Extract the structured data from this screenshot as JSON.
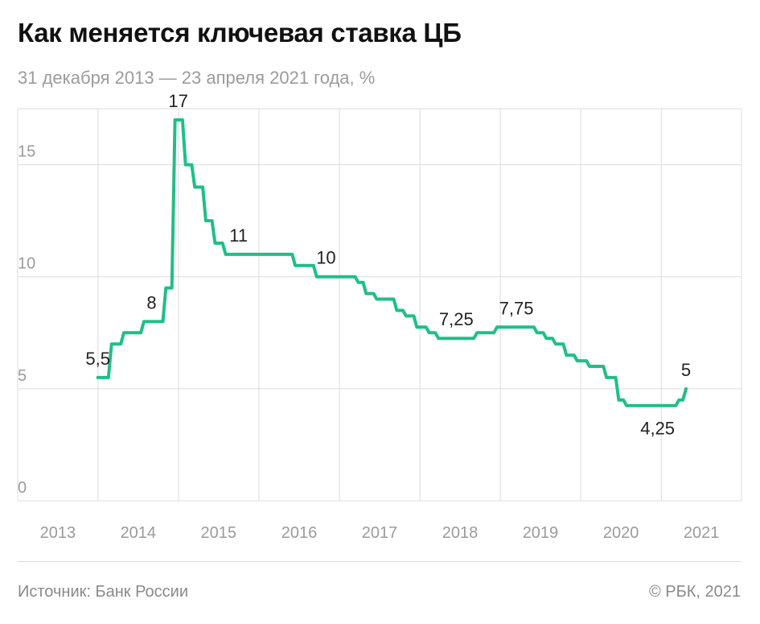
{
  "title": "Как меняется ключевая ставка ЦБ",
  "subtitle": "31 декабря 2013 — 23 апреля 2021 года, %",
  "source": "Источник: Банк России",
  "copyright": "© РБК, 2021",
  "colors": {
    "line": "#1fbf86",
    "grid": "#dcdcdc",
    "tick": "#9b9b9b",
    "label": "#222222"
  },
  "chart_data": {
    "type": "line",
    "title": "Как меняется ключевая ставка ЦБ",
    "ylim": [
      0,
      17.5
    ],
    "xlim": [
      "2013-01-01",
      "2021-12-31"
    ],
    "yticks": [
      0,
      5,
      10,
      15
    ],
    "xticks": [
      "2013",
      "2014",
      "2015",
      "2016",
      "2017",
      "2018",
      "2019",
      "2020",
      "2021"
    ],
    "grid": true,
    "series": [
      {
        "points": [
          [
            "2013-12-31",
            5.5
          ],
          [
            "2014-03-03",
            7.0
          ],
          [
            "2014-04-28",
            7.5
          ],
          [
            "2014-07-28",
            8.0
          ],
          [
            "2014-11-05",
            9.5
          ],
          [
            "2014-12-16",
            17.0
          ],
          [
            "2015-02-02",
            15.0
          ],
          [
            "2015-03-16",
            14.0
          ],
          [
            "2015-05-05",
            12.5
          ],
          [
            "2015-06-16",
            11.5
          ],
          [
            "2015-08-03",
            11.0
          ],
          [
            "2016-06-14",
            10.5
          ],
          [
            "2016-09-19",
            10.0
          ],
          [
            "2017-03-27",
            9.75
          ],
          [
            "2017-05-02",
            9.25
          ],
          [
            "2017-06-19",
            9.0
          ],
          [
            "2017-09-18",
            8.5
          ],
          [
            "2017-10-30",
            8.25
          ],
          [
            "2017-12-18",
            7.75
          ],
          [
            "2018-02-12",
            7.5
          ],
          [
            "2018-03-26",
            7.25
          ],
          [
            "2018-09-17",
            7.5
          ],
          [
            "2018-12-17",
            7.75
          ],
          [
            "2019-06-17",
            7.5
          ],
          [
            "2019-07-29",
            7.25
          ],
          [
            "2019-09-09",
            7.0
          ],
          [
            "2019-10-28",
            6.5
          ],
          [
            "2019-12-16",
            6.25
          ],
          [
            "2020-02-10",
            6.0
          ],
          [
            "2020-04-27",
            5.5
          ],
          [
            "2020-06-22",
            4.5
          ],
          [
            "2020-07-27",
            4.25
          ],
          [
            "2021-03-22",
            4.5
          ],
          [
            "2021-04-23",
            5.0
          ]
        ]
      }
    ],
    "annotations": [
      {
        "text": "5,5",
        "x": "2013-12-31",
        "y": 5.5,
        "pos": "above"
      },
      {
        "text": "8",
        "x": "2014-09-01",
        "y": 8.0,
        "pos": "above"
      },
      {
        "text": "17",
        "x": "2014-12-31",
        "y": 17.0,
        "pos": "above"
      },
      {
        "text": "11",
        "x": "2015-10-01",
        "y": 11.0,
        "pos": "above"
      },
      {
        "text": "10",
        "x": "2016-11-01",
        "y": 10.0,
        "pos": "above"
      },
      {
        "text": "7,25",
        "x": "2018-06-15",
        "y": 7.25,
        "pos": "above"
      },
      {
        "text": "7,75",
        "x": "2019-03-15",
        "y": 7.75,
        "pos": "above"
      },
      {
        "text": "4,25",
        "x": "2020-12-15",
        "y": 4.25,
        "pos": "below"
      },
      {
        "text": "5",
        "x": "2021-04-23",
        "y": 5.0,
        "pos": "above"
      }
    ]
  }
}
